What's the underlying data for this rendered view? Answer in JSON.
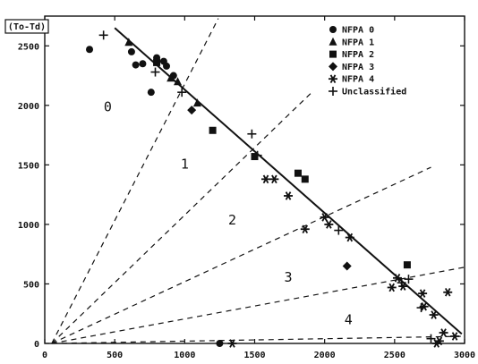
{
  "chart_data": {
    "type": "scatter",
    "title": "",
    "xlabel": "",
    "ylabel": "(To-Td)",
    "xlim": [
      0,
      3000
    ],
    "ylim": [
      0,
      2750
    ],
    "x_ticks": [
      0,
      500,
      1000,
      1500,
      2000,
      2500,
      3000
    ],
    "y_ticks": [
      0,
      500,
      1000,
      1500,
      2000,
      2500
    ],
    "legend_position": "top-right",
    "series": [
      {
        "name": "NFPA 0",
        "marker": "circle",
        "points": [
          [
            320,
            2470
          ],
          [
            620,
            2450
          ],
          [
            650,
            2340
          ],
          [
            700,
            2350
          ],
          [
            760,
            2110
          ],
          [
            800,
            2400
          ],
          [
            850,
            2370
          ],
          [
            870,
            2330
          ],
          [
            920,
            2250
          ],
          [
            1250,
            0
          ]
        ]
      },
      {
        "name": "NFPA 1",
        "marker": "triangle",
        "points": [
          [
            600,
            2530
          ],
          [
            900,
            2230
          ],
          [
            950,
            2200
          ],
          [
            1090,
            2020
          ]
        ]
      },
      {
        "name": "NFPA 2",
        "marker": "square",
        "points": [
          [
            800,
            2360
          ],
          [
            1200,
            1790
          ],
          [
            1500,
            1570
          ],
          [
            1810,
            1430
          ],
          [
            1860,
            1380
          ],
          [
            2590,
            660
          ]
        ]
      },
      {
        "name": "NFPA 3",
        "marker": "diamond",
        "points": [
          [
            1050,
            1960
          ],
          [
            2160,
            650
          ]
        ]
      },
      {
        "name": "NFPA 4",
        "marker": "asterisk",
        "points": [
          [
            1340,
            0
          ],
          [
            1580,
            1380
          ],
          [
            1640,
            1380
          ],
          [
            1740,
            1240
          ],
          [
            1860,
            960
          ],
          [
            2000,
            1060
          ],
          [
            2030,
            1000
          ],
          [
            2180,
            890
          ],
          [
            2480,
            470
          ],
          [
            2520,
            550
          ],
          [
            2560,
            480
          ],
          [
            2700,
            420
          ],
          [
            2710,
            310
          ],
          [
            2780,
            240
          ],
          [
            2800,
            0
          ],
          [
            2820,
            20
          ],
          [
            2850,
            90
          ],
          [
            2880,
            430
          ],
          [
            2930,
            60
          ]
        ]
      },
      {
        "name": "Unclassified",
        "marker": "plus",
        "points": [
          [
            420,
            2590
          ],
          [
            790,
            2280
          ],
          [
            980,
            2110
          ],
          [
            1480,
            1760
          ],
          [
            1520,
            1580
          ],
          [
            2100,
            950
          ],
          [
            2550,
            510
          ],
          [
            2600,
            540
          ],
          [
            2690,
            300
          ],
          [
            2760,
            40
          ]
        ]
      }
    ],
    "fit_line": {
      "from": [
        500,
        2650
      ],
      "to": [
        2980,
        80
      ]
    },
    "dashed_lines": [
      {
        "from": [
          50,
          0
        ],
        "to": [
          1240,
          2730
        ]
      },
      {
        "from": [
          50,
          0
        ],
        "to": [
          1900,
          2100
        ]
      },
      {
        "from": [
          50,
          0
        ],
        "to": [
          2760,
          1480
        ]
      },
      {
        "from": [
          50,
          0
        ],
        "to": [
          3000,
          640
        ]
      },
      {
        "from": [
          50,
          0
        ],
        "to": [
          3000,
          60
        ]
      }
    ],
    "region_labels": [
      {
        "text": "0",
        "x": 450,
        "y": 1950
      },
      {
        "text": "1",
        "x": 1000,
        "y": 1470
      },
      {
        "text": "2",
        "x": 1340,
        "y": 1000
      },
      {
        "text": "3",
        "x": 1740,
        "y": 520
      },
      {
        "text": "4",
        "x": 2170,
        "y": 160
      }
    ]
  }
}
